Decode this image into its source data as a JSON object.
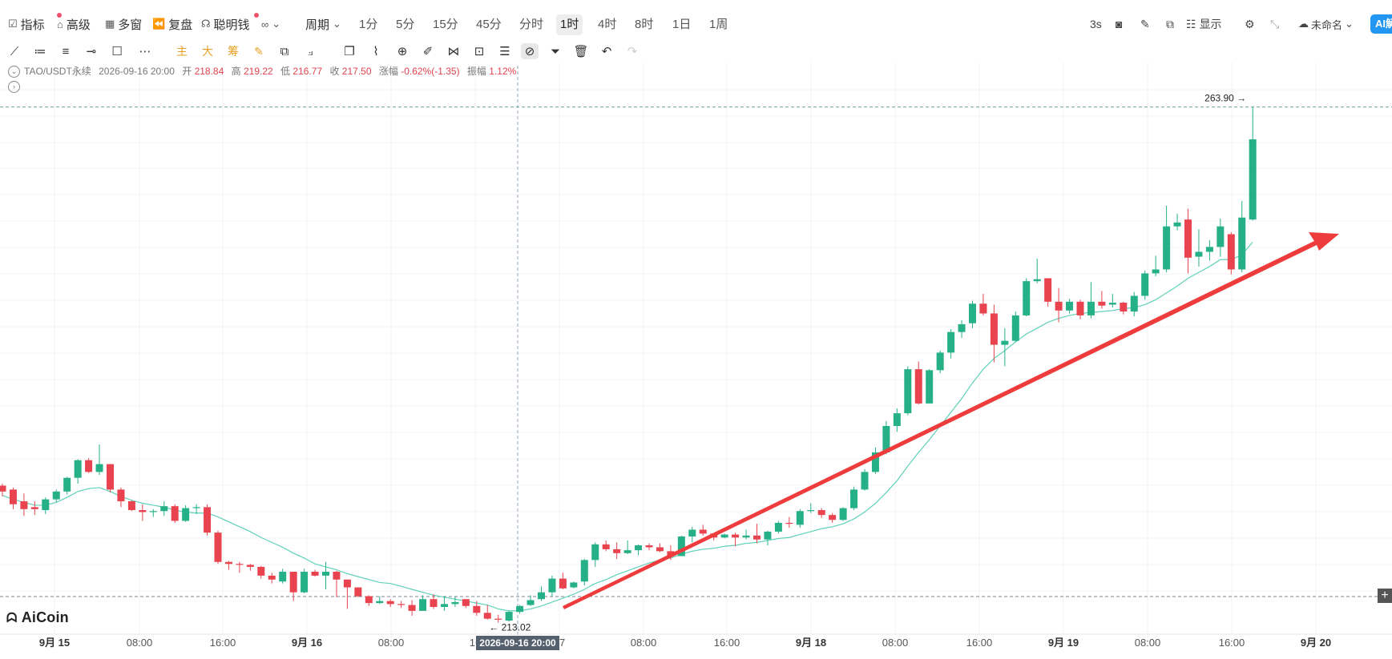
{
  "toolbar": {
    "indicator": "指标",
    "advanced": "高级",
    "multi_window": "多窗",
    "replay": "复盘",
    "smart_money": "聪明钱",
    "period_label": "周期",
    "periods": [
      "1分",
      "5分",
      "15分",
      "45分",
      "分时",
      "1时",
      "4时",
      "8时",
      "1日",
      "1周"
    ],
    "active_period": "1时",
    "refresh": "3s",
    "display": "显示",
    "layout_name": "未命名",
    "ai_label": "AI解"
  },
  "drawing_tools": [
    "trend-line",
    "horizontal-ray",
    "parallel-channel",
    "horizontal-line",
    "rectangle",
    "more",
    "main",
    "large",
    "chips",
    "edit",
    "copy",
    "measure",
    "copy-draw",
    "ruler",
    "zoom",
    "brush",
    "magnet",
    "lock",
    "layers",
    "hide",
    "filter",
    "delete",
    "undo",
    "redo"
  ],
  "drawing_tool_labels": {
    "main": "主",
    "large": "大",
    "chips": "筹"
  },
  "info": {
    "symbol": "TAO/USDT永续",
    "datetime": "2026-09-16 20:00",
    "open_label": "开",
    "open": "218.84",
    "high_label": "高",
    "high": "219.22",
    "low_label": "低",
    "low": "216.77",
    "close_label": "收",
    "close": "217.50",
    "change_label": "涨幅",
    "change": "-0.62%(-1.35)",
    "amplitude_label": "振幅",
    "amplitude": "1.12%"
  },
  "logo": "AiCoin",
  "chart_data": {
    "type": "candlestick",
    "symbol": "TAO/USDT永续",
    "interval": "1h",
    "y_range": [
      211.0,
      266.0
    ],
    "x_ticks": [
      "9月 15",
      "08:00",
      "16:00",
      "9月 16",
      "08:00",
      "16",
      "17",
      "08:00",
      "16:00",
      "9月 18",
      "08:00",
      "16:00",
      "9月 19",
      "08:00",
      "16:00",
      "9月 20"
    ],
    "highest_marker": "263.90",
    "lowest_marker": "213.02",
    "crosshair_label": "2026-09-16 20:00",
    "series": [
      {
        "name": "candles",
        "ohlc": [
          [
            225.2,
            225.4,
            224.1,
            224.6
          ],
          [
            224.8,
            225.0,
            222.8,
            223.3
          ],
          [
            223.6,
            224.4,
            222.1,
            222.8
          ],
          [
            223.0,
            223.6,
            222.2,
            222.8
          ],
          [
            222.7,
            224.0,
            222.3,
            223.8
          ],
          [
            223.8,
            224.8,
            223.5,
            224.6
          ],
          [
            224.6,
            226.1,
            224.3,
            226.0
          ],
          [
            226.0,
            227.9,
            225.4,
            227.8
          ],
          [
            227.8,
            228.0,
            226.5,
            226.6
          ],
          [
            226.6,
            229.4,
            226.3,
            227.4
          ],
          [
            227.4,
            227.4,
            224.5,
            224.8
          ],
          [
            224.8,
            225.0,
            223.0,
            223.6
          ],
          [
            223.6,
            223.7,
            222.6,
            222.7
          ],
          [
            222.7,
            223.3,
            221.6,
            222.5
          ],
          [
            222.5,
            222.8,
            222.0,
            222.6
          ],
          [
            222.6,
            223.6,
            222.1,
            223.1
          ],
          [
            223.1,
            223.3,
            221.4,
            221.6
          ],
          [
            221.6,
            223.2,
            221.5,
            222.9
          ],
          [
            222.9,
            223.3,
            222.3,
            223.0
          ],
          [
            223.0,
            223.3,
            220.1,
            220.4
          ],
          [
            220.4,
            220.6,
            217.2,
            217.4
          ],
          [
            217.4,
            217.5,
            216.6,
            217.2
          ],
          [
            217.2,
            217.4,
            216.3,
            217.1
          ],
          [
            217.1,
            217.2,
            216.5,
            216.9
          ],
          [
            216.9,
            217.0,
            215.7,
            216.0
          ],
          [
            216.0,
            216.3,
            215.2,
            215.6
          ],
          [
            215.4,
            216.7,
            215.2,
            216.4
          ],
          [
            216.4,
            216.4,
            213.4,
            214.3
          ],
          [
            214.3,
            216.7,
            214.2,
            216.4
          ],
          [
            216.4,
            216.6,
            215.9,
            216.0
          ],
          [
            216.0,
            217.4,
            214.6,
            216.4
          ],
          [
            216.4,
            216.5,
            213.8,
            215.6
          ],
          [
            215.6,
            215.6,
            212.6,
            214.8
          ],
          [
            214.8,
            214.8,
            213.8,
            213.9
          ],
          [
            213.9,
            214.0,
            212.9,
            213.2
          ],
          [
            213.2,
            213.9,
            213.1,
            213.4
          ],
          [
            213.4,
            213.6,
            212.8,
            213.1
          ],
          [
            213.1,
            213.4,
            212.7,
            213.0
          ],
          [
            213.0,
            213.5,
            211.9,
            212.4
          ],
          [
            212.4,
            214.0,
            212.4,
            213.6
          ],
          [
            213.6,
            214.1,
            212.6,
            212.8
          ],
          [
            212.8,
            213.9,
            212.4,
            213.1
          ],
          [
            213.1,
            213.9,
            212.8,
            213.3
          ],
          [
            213.6,
            213.6,
            212.7,
            212.9
          ],
          [
            212.9,
            213.4,
            211.9,
            212.2
          ],
          [
            212.2,
            213.0,
            211.5,
            211.6
          ],
          [
            211.6,
            212.0,
            211.2,
            211.5
          ],
          [
            211.4,
            212.4,
            211.3,
            212.3
          ],
          [
            212.3,
            213.0,
            212.1,
            212.9
          ],
          [
            213.0,
            214.0,
            212.9,
            213.5
          ],
          [
            213.6,
            214.9,
            213.4,
            214.3
          ],
          [
            214.3,
            216.0,
            213.9,
            215.7
          ],
          [
            215.7,
            216.3,
            214.6,
            214.7
          ],
          [
            214.8,
            215.4,
            214.7,
            215.3
          ],
          [
            215.4,
            217.7,
            215.0,
            217.6
          ],
          [
            217.6,
            219.4,
            216.9,
            219.2
          ],
          [
            219.2,
            219.6,
            218.5,
            218.7
          ],
          [
            218.7,
            219.4,
            217.7,
            218.3
          ],
          [
            218.3,
            219.6,
            218.2,
            218.6
          ],
          [
            218.6,
            219.2,
            218.1,
            219.1
          ],
          [
            219.1,
            219.3,
            218.6,
            218.9
          ],
          [
            218.9,
            219.3,
            218.4,
            218.5
          ],
          [
            218.5,
            219.1,
            217.6,
            218.0
          ],
          [
            218.0,
            220.1,
            218.0,
            220.0
          ],
          [
            220.0,
            221.0,
            219.4,
            220.7
          ],
          [
            220.7,
            221.2,
            220.1,
            220.3
          ],
          [
            220.3,
            220.3,
            219.6,
            219.9
          ],
          [
            219.9,
            220.3,
            219.8,
            220.2
          ],
          [
            220.2,
            220.4,
            219.0,
            219.9
          ],
          [
            219.9,
            220.7,
            219.7,
            220.1
          ],
          [
            220.1,
            221.3,
            219.3,
            219.7
          ],
          [
            219.7,
            220.6,
            219.1,
            220.5
          ],
          [
            220.5,
            221.6,
            220.3,
            221.4
          ],
          [
            221.4,
            222.0,
            220.9,
            221.3
          ],
          [
            221.2,
            222.8,
            220.9,
            222.6
          ],
          [
            222.6,
            223.4,
            222.4,
            222.7
          ],
          [
            222.7,
            222.9,
            221.9,
            222.2
          ],
          [
            222.2,
            222.4,
            221.4,
            221.7
          ],
          [
            221.7,
            223.0,
            221.6,
            222.9
          ],
          [
            222.9,
            225.1,
            222.7,
            224.8
          ],
          [
            224.8,
            226.9,
            224.7,
            226.6
          ],
          [
            226.6,
            229.1,
            226.4,
            228.6
          ],
          [
            228.6,
            231.8,
            228.4,
            231.3
          ],
          [
            231.3,
            233.1,
            230.7,
            232.6
          ],
          [
            232.6,
            237.4,
            232.4,
            237.1
          ],
          [
            237.1,
            237.9,
            233.5,
            233.6
          ],
          [
            233.6,
            237.1,
            233.6,
            237.0
          ],
          [
            237.0,
            239.0,
            236.7,
            238.8
          ],
          [
            238.8,
            241.2,
            238.2,
            240.9
          ],
          [
            240.9,
            242.1,
            240.3,
            241.7
          ],
          [
            241.8,
            244.1,
            241.3,
            243.8
          ],
          [
            243.8,
            244.8,
            242.6,
            242.8
          ],
          [
            242.8,
            243.7,
            237.8,
            239.6
          ],
          [
            239.6,
            241.3,
            237.4,
            240.0
          ],
          [
            240.0,
            243.0,
            239.9,
            242.6
          ],
          [
            242.6,
            246.4,
            242.5,
            246.1
          ],
          [
            246.1,
            248.4,
            245.9,
            246.3
          ],
          [
            246.4,
            246.4,
            243.5,
            244.0
          ],
          [
            244.0,
            245.4,
            241.9,
            243.1
          ],
          [
            243.1,
            244.3,
            242.8,
            244.0
          ],
          [
            244.0,
            244.2,
            242.2,
            242.6
          ],
          [
            242.6,
            246.0,
            242.3,
            244.0
          ],
          [
            244.0,
            245.1,
            243.3,
            243.6
          ],
          [
            243.7,
            244.8,
            243.4,
            243.9
          ],
          [
            243.9,
            244.0,
            242.7,
            243.0
          ],
          [
            243.0,
            245.0,
            242.5,
            244.6
          ],
          [
            244.6,
            247.2,
            244.2,
            246.9
          ],
          [
            246.9,
            248.7,
            246.6,
            247.3
          ],
          [
            247.3,
            253.8,
            247.0,
            251.7
          ],
          [
            251.7,
            253.0,
            251.3,
            252.1
          ],
          [
            252.4,
            253.5,
            246.9,
            248.5
          ],
          [
            248.6,
            251.4,
            247.6,
            249.1
          ],
          [
            249.1,
            250.3,
            248.2,
            249.6
          ],
          [
            249.6,
            252.5,
            248.6,
            251.7
          ],
          [
            250.9,
            251.1,
            246.8,
            247.3
          ],
          [
            247.3,
            254.3,
            247.0,
            252.6
          ],
          [
            252.4,
            263.9,
            252.3,
            260.6
          ]
        ]
      },
      {
        "name": "MA",
        "values": [
          224.2,
          223.8,
          223.5,
          223.2,
          223.2,
          223.5,
          224.0,
          224.6,
          224.9,
          225.0,
          224.6,
          224.1,
          223.7,
          223.4,
          223.2,
          223.0,
          222.7,
          222.5,
          222.4,
          222.4,
          222.0,
          221.5,
          221.0,
          220.5,
          219.9,
          219.4,
          218.9,
          218.3,
          217.8,
          217.2,
          216.9,
          216.6,
          216.2,
          215.9,
          215.6,
          215.3,
          215.2,
          214.9,
          214.6,
          214.3,
          214.0,
          213.8,
          213.6,
          213.4,
          213.2,
          213.0,
          212.6,
          212.4,
          212.4,
          212.6,
          212.9,
          213.3,
          213.7,
          214.1,
          214.6,
          215.2,
          215.6,
          216.1,
          216.5,
          216.9,
          217.3,
          217.6,
          217.8,
          218.2,
          218.5,
          218.7,
          218.8,
          219.0,
          219.1,
          219.3,
          219.4,
          219.6,
          219.8,
          219.9,
          220.2,
          220.5,
          220.8,
          221.0,
          221.3,
          221.8,
          222.5,
          223.4,
          224.5,
          225.7,
          227.2,
          228.6,
          229.9,
          231.3,
          232.7,
          234.1,
          235.7,
          237.1,
          238.2,
          239.0,
          239.9,
          240.7,
          241.3,
          241.9,
          242.3,
          242.6,
          242.8,
          242.9,
          243.0,
          243.1,
          243.3,
          243.4,
          243.7,
          244.2,
          244.9,
          245.6,
          246.4,
          247.0,
          247.6,
          248.3,
          248.3,
          248.8,
          250.1
        ]
      }
    ]
  }
}
